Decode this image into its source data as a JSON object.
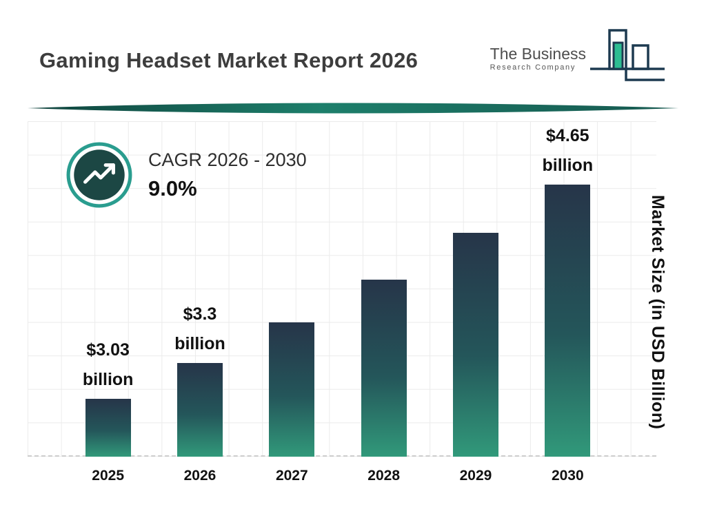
{
  "header": {
    "title": "Gaming Headset Market Report 2026",
    "logo": {
      "line1": "The Business",
      "line2": "Research Company"
    }
  },
  "cagr": {
    "label": "CAGR 2026 - 2030",
    "value": "9.0%"
  },
  "chart_data": {
    "type": "bar",
    "title": "Gaming Headset Market Report 2026",
    "xlabel": "",
    "ylabel": "Market Size (in USD Billion)",
    "categories": [
      "2025",
      "2026",
      "2027",
      "2028",
      "2029",
      "2030"
    ],
    "values": [
      3.03,
      3.3,
      3.6,
      3.92,
      4.27,
      4.65
    ],
    "bar_value_labels": [
      {
        "amount": "$3.03",
        "unit": "billion"
      },
      {
        "amount": "$3.3",
        "unit": "billion"
      },
      null,
      null,
      null,
      {
        "amount": "$4.65",
        "unit": "billion"
      }
    ],
    "cagr_label": "CAGR 2026 - 2030",
    "cagr_value": "9.0%",
    "ylim": [
      2.6,
      5.1
    ],
    "grid": true,
    "legend": false,
    "colors": {
      "bar_gradient_top": "#263549",
      "bar_gradient_mid": "#24565a",
      "bar_gradient_bottom": "#31997a",
      "accent_teal": "#2a9d8f",
      "dark_teal_circle": "#1c4744",
      "divider_teal": "#16584f",
      "logo_navy": "#1d3a50",
      "logo_teal": "#2dbd92"
    }
  }
}
